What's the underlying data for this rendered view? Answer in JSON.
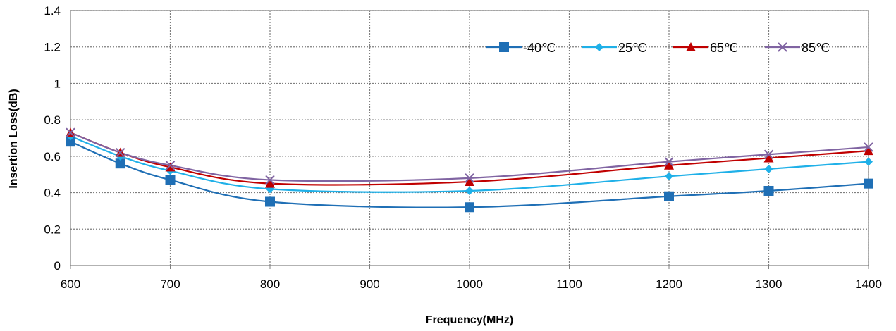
{
  "chart_data": {
    "type": "line",
    "xlabel": "Frequency(MHz)",
    "ylabel": "Insertion Loss(dB)",
    "xlim": [
      600,
      1400
    ],
    "ylim": [
      0,
      1.4
    ],
    "x_ticks": [
      "600",
      "700",
      "800",
      "900",
      "1000",
      "1100",
      "1200",
      "1300",
      "1400"
    ],
    "y_ticks": [
      "0",
      "0.2",
      "0.4",
      "0.6",
      "0.8",
      "1",
      "1.2",
      "1.4"
    ],
    "grid": true,
    "legend_position": "top-right",
    "x": [
      600,
      650,
      700,
      800,
      1000,
      1200,
      1300,
      1400
    ],
    "series": [
      {
        "name": "-40℃",
        "color": "#1f6fb5",
        "marker": "square",
        "values": [
          0.68,
          0.56,
          0.47,
          0.35,
          0.32,
          0.38,
          0.41,
          0.45
        ]
      },
      {
        "name": "25℃",
        "color": "#1fb0e8",
        "marker": "diamond",
        "values": [
          0.71,
          0.6,
          0.52,
          0.42,
          0.41,
          0.49,
          0.53,
          0.57
        ]
      },
      {
        "name": "65℃",
        "color": "#c00000",
        "marker": "triangle",
        "values": [
          0.73,
          0.62,
          0.54,
          0.45,
          0.46,
          0.55,
          0.59,
          0.63
        ]
      },
      {
        "name": "85℃",
        "color": "#8064a2",
        "marker": "x",
        "values": [
          0.73,
          0.62,
          0.55,
          0.47,
          0.48,
          0.57,
          0.61,
          0.65
        ]
      }
    ]
  }
}
